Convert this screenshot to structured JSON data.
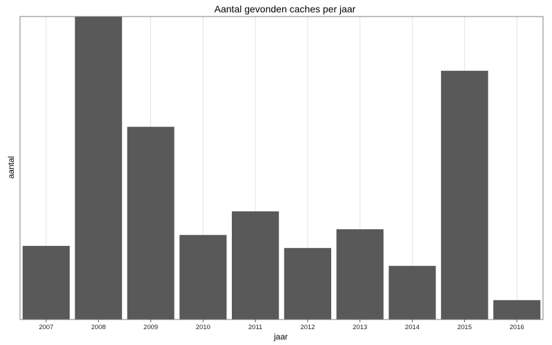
{
  "chart_data": {
    "type": "bar",
    "title": "Aantal gevonden caches per jaar",
    "xlabel": "jaar",
    "ylabel": "aantal",
    "categories": [
      "2007",
      "2008",
      "2009",
      "2010",
      "2011",
      "2012",
      "2013",
      "2014",
      "2015",
      "2016"
    ],
    "values": [
      24.3,
      100,
      63.6,
      27.9,
      35.7,
      23.6,
      29.8,
      17.7,
      82.1,
      6.4
    ],
    "ylim": [
      0,
      100
    ],
    "grid": {
      "x_major": true,
      "y_major": false
    },
    "y_tick_labels_shown": false,
    "legend": "none",
    "bar_color": "#595959",
    "panel_border_color": "#7f7f7f",
    "grid_color": "#e3e3e3"
  }
}
